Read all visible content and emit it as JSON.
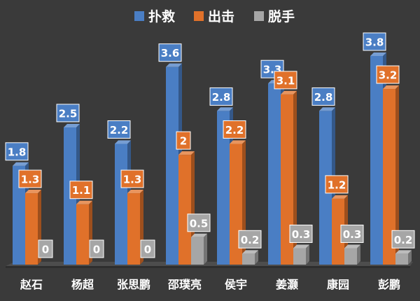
{
  "chart_data": {
    "type": "bar",
    "title": "",
    "xlabel": "",
    "ylabel": "",
    "ylim": [
      0,
      4
    ],
    "grid": false,
    "legend_position": "top",
    "categories": [
      "赵石",
      "杨超",
      "张思鹏",
      "邵璞亮",
      "侯宇",
      "姜灏",
      "康园",
      "彭鹏"
    ],
    "series": [
      {
        "name": "扑救",
        "color": "#4a7ec4",
        "values": [
          1.8,
          2.5,
          2.2,
          3.6,
          2.8,
          3.3,
          2.8,
          3.8
        ]
      },
      {
        "name": "出击",
        "color": "#e0712a",
        "values": [
          1.3,
          1.1,
          1.3,
          2,
          2.2,
          3.1,
          1.2,
          3.2
        ]
      },
      {
        "name": "脱手",
        "color": "#a6a6a6",
        "values": [
          0,
          0,
          0,
          0.5,
          0.2,
          0.3,
          0.3,
          0.2
        ]
      }
    ]
  }
}
